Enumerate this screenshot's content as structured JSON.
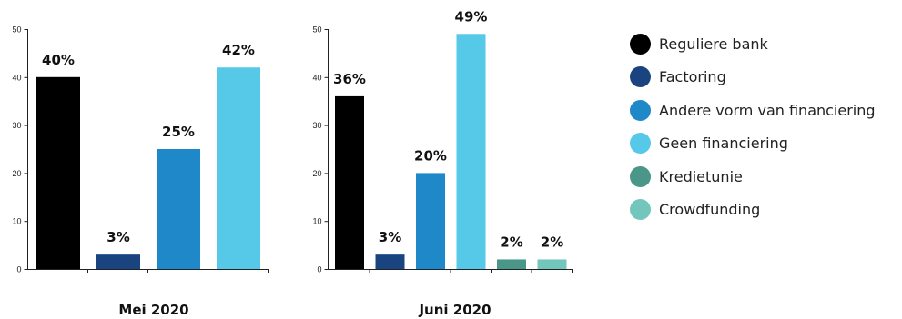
{
  "chart_data": [
    {
      "type": "bar",
      "title": "Mei 2020",
      "ylim": [
        0,
        50
      ],
      "yticks": [
        0,
        10,
        20,
        30,
        40,
        50
      ],
      "categories": [
        "Reguliere bank",
        "Factoring",
        "Andere vorm van financiering",
        "Geen financiering"
      ],
      "values": [
        40,
        3,
        25,
        42
      ],
      "labels": [
        "40%",
        "3%",
        "25%",
        "42%"
      ],
      "colors": [
        "#000000",
        "#1a4480",
        "#1e88c8",
        "#56c8e8"
      ],
      "grid": false
    },
    {
      "type": "bar",
      "title": "Juni 2020",
      "ylim": [
        0,
        50
      ],
      "yticks": [
        0,
        10,
        20,
        30,
        40,
        50
      ],
      "categories": [
        "Reguliere bank",
        "Factoring",
        "Andere vorm van financiering",
        "Geen financiering",
        "Kredietunie",
        "Crowdfunding"
      ],
      "values": [
        36,
        3,
        20,
        49,
        2,
        2
      ],
      "labels": [
        "36%",
        "3%",
        "20%",
        "49%",
        "2%",
        "2%"
      ],
      "colors": [
        "#000000",
        "#1a4480",
        "#1e88c8",
        "#56c8e8",
        "#4a9688",
        "#72c6bc"
      ],
      "grid": false
    }
  ],
  "legend": {
    "placement": "right",
    "items": [
      {
        "label": "Reguliere bank",
        "color": "#000000"
      },
      {
        "label": "Factoring",
        "color": "#1a4480"
      },
      {
        "label": "Andere vorm van financiering",
        "color": "#1e88c8"
      },
      {
        "label": "Geen financiering",
        "color": "#56c8e8"
      },
      {
        "label": "Kredietunie",
        "color": "#4a9688"
      },
      {
        "label": "Crowdfunding",
        "color": "#72c6bc"
      }
    ]
  }
}
